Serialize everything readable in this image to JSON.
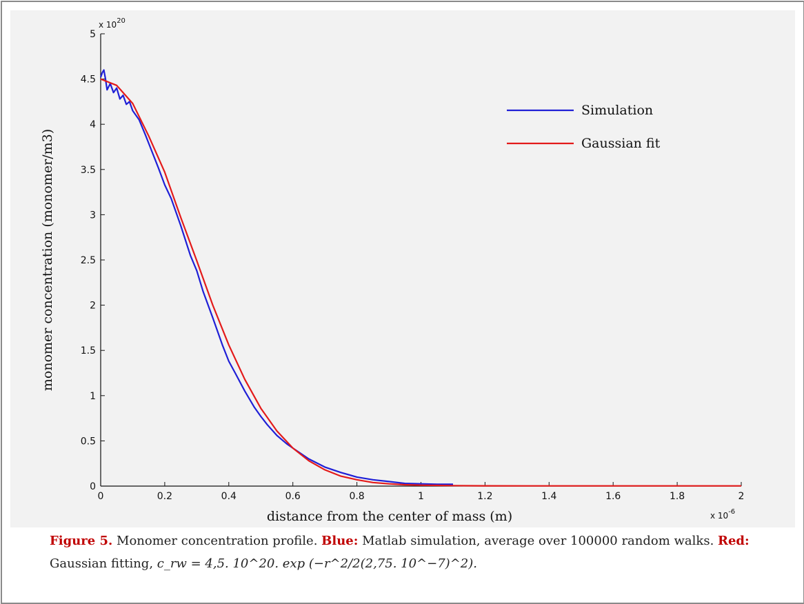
{
  "chart_data": {
    "type": "line",
    "title": "",
    "xlabel": "distance from the center of mass (m)",
    "ylabel": "monomer concentration (monomer/m3)",
    "x_exponent_label": "x 10",
    "x_exponent_power": "-6",
    "y_exponent_label": "x 10",
    "y_exponent_power": "20",
    "xlim": [
      0,
      2
    ],
    "ylim": [
      0,
      5
    ],
    "x_ticks": [
      "0",
      "0.2",
      "0.4",
      "0.6",
      "0.8",
      "1",
      "1.2",
      "1.4",
      "1.6",
      "1.8",
      "2"
    ],
    "y_ticks": [
      "0",
      "0.5",
      "1",
      "1.5",
      "2",
      "2.5",
      "3",
      "3.5",
      "4",
      "4.5",
      "5"
    ],
    "legend_position": "top-right",
    "grid": false,
    "series": [
      {
        "name": "Simulation",
        "color": "#1f1fd6",
        "x": [
          0,
          0.005,
          0.01,
          0.015,
          0.02,
          0.03,
          0.04,
          0.05,
          0.06,
          0.07,
          0.08,
          0.09,
          0.1,
          0.12,
          0.14,
          0.16,
          0.18,
          0.2,
          0.22,
          0.25,
          0.28,
          0.3,
          0.32,
          0.35,
          0.38,
          0.4,
          0.42,
          0.45,
          0.48,
          0.5,
          0.52,
          0.55,
          0.58,
          0.6,
          0.65,
          0.7,
          0.75,
          0.8,
          0.85,
          0.9,
          0.95,
          1.0,
          1.05,
          1.1
        ],
        "y": [
          4.52,
          4.57,
          4.6,
          4.5,
          4.38,
          4.45,
          4.35,
          4.4,
          4.28,
          4.32,
          4.22,
          4.25,
          4.15,
          4.05,
          3.88,
          3.7,
          3.52,
          3.33,
          3.18,
          2.88,
          2.55,
          2.38,
          2.15,
          1.86,
          1.56,
          1.38,
          1.25,
          1.05,
          0.87,
          0.77,
          0.68,
          0.56,
          0.47,
          0.42,
          0.3,
          0.21,
          0.15,
          0.1,
          0.07,
          0.05,
          0.03,
          0.025,
          0.02,
          0.02
        ]
      },
      {
        "name": "Gaussian fit",
        "color": "#e31a1a",
        "x": [
          0,
          0.05,
          0.1,
          0.15,
          0.2,
          0.25,
          0.3,
          0.35,
          0.4,
          0.45,
          0.5,
          0.55,
          0.6,
          0.65,
          0.7,
          0.75,
          0.8,
          0.85,
          0.9,
          0.95,
          1.0,
          1.1,
          1.2,
          1.4,
          1.6,
          1.8,
          2.0
        ],
        "y": [
          4.5,
          4.43,
          4.23,
          3.87,
          3.47,
          2.97,
          2.49,
          2.0,
          1.56,
          1.18,
          0.86,
          0.61,
          0.42,
          0.28,
          0.18,
          0.11,
          0.07,
          0.04,
          0.025,
          0.015,
          0.01,
          0.005,
          0.003,
          0.002,
          0.002,
          0.002,
          0.002
        ]
      }
    ]
  },
  "caption": {
    "label": "Figure 5.",
    "text1": " Monomer concentration profile. ",
    "blue_label": "Blue:",
    "text2": " Matlab simulation, average over 100000 random walks. ",
    "red_label": "Red:",
    "text3": " Gaussian fitting, ",
    "formula": "c_rw = 4,5. 10^20. exp (−r^2/2(2,75. 10^−7)^2)."
  }
}
